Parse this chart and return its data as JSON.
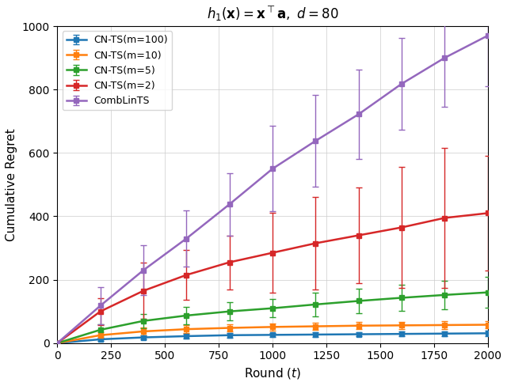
{
  "title": "$h_1(\\mathbf{x}) = \\mathbf{x}^\\intercal \\mathbf{a},\\ d{=}80$",
  "xlabel": "Round ($t$)",
  "ylabel": "Cumulative Regret",
  "xlim": [
    0,
    2000
  ],
  "ylim": [
    0,
    1000
  ],
  "xticks": [
    0,
    250,
    500,
    750,
    1000,
    1250,
    1500,
    1750,
    2000
  ],
  "yticks": [
    0,
    200,
    400,
    600,
    800,
    1000
  ],
  "series": [
    {
      "label": "CN-TS(m=100)",
      "color": "#1f77b4",
      "marker": "s",
      "x": [
        0,
        200,
        400,
        600,
        800,
        1000,
        1200,
        1400,
        1600,
        1800,
        2000
      ],
      "y": [
        0,
        12,
        18,
        22,
        25,
        26,
        27,
        28,
        29,
        30,
        31
      ],
      "yerr": [
        0,
        6,
        7,
        7,
        7,
        7,
        7,
        7,
        7,
        8,
        8
      ]
    },
    {
      "label": "CN-TS(m=10)",
      "color": "#ff7f0e",
      "marker": "s",
      "x": [
        0,
        200,
        400,
        600,
        800,
        1000,
        1200,
        1400,
        1600,
        1800,
        2000
      ],
      "y": [
        0,
        25,
        37,
        44,
        48,
        51,
        53,
        55,
        56,
        57,
        58
      ],
      "yerr": [
        0,
        10,
        12,
        12,
        12,
        11,
        11,
        11,
        11,
        12,
        12
      ]
    },
    {
      "label": "CN-TS(m=5)",
      "color": "#2ca02c",
      "marker": "s",
      "x": [
        0,
        200,
        400,
        600,
        800,
        1000,
        1200,
        1400,
        1600,
        1800,
        2000
      ],
      "y": [
        0,
        42,
        70,
        87,
        100,
        110,
        122,
        133,
        143,
        152,
        160
      ],
      "yerr": [
        0,
        18,
        22,
        27,
        28,
        28,
        38,
        38,
        40,
        45,
        48
      ]
    },
    {
      "label": "CN-TS(m=2)",
      "color": "#d62728",
      "marker": "s",
      "x": [
        0,
        200,
        400,
        600,
        800,
        1000,
        1200,
        1400,
        1600,
        1800,
        2000
      ],
      "y": [
        0,
        100,
        165,
        215,
        255,
        285,
        315,
        340,
        365,
        395,
        410
      ],
      "yerr": [
        0,
        42,
        88,
        78,
        85,
        125,
        145,
        150,
        190,
        220,
        180
      ]
    },
    {
      "label": "CombLinTS",
      "color": "#9467bd",
      "marker": "s",
      "x": [
        0,
        200,
        400,
        600,
        800,
        1000,
        1200,
        1400,
        1600,
        1800,
        2000
      ],
      "y": [
        0,
        118,
        230,
        330,
        438,
        550,
        638,
        722,
        818,
        900,
        970
      ],
      "yerr": [
        0,
        58,
        78,
        88,
        98,
        135,
        145,
        140,
        145,
        155,
        160
      ]
    }
  ]
}
